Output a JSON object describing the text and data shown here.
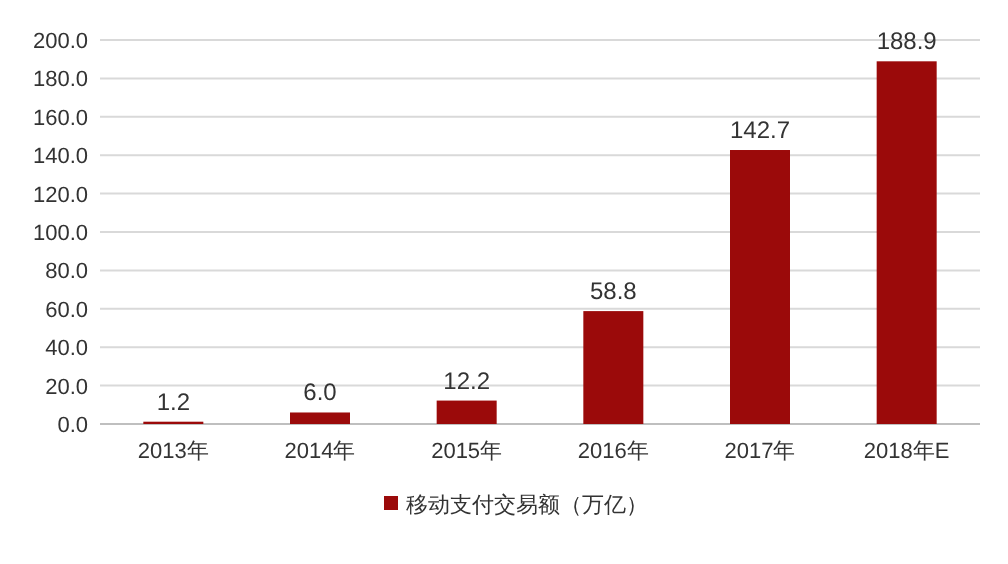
{
  "chart_data": {
    "type": "bar",
    "categories": [
      "2013年",
      "2014年",
      "2015年",
      "2016年",
      "2017年",
      "2018年E"
    ],
    "series": [
      {
        "name": "移动支付交易额（万亿）",
        "color": "#9b0a0a",
        "values": [
          1.2,
          6.0,
          12.2,
          58.8,
          142.7,
          188.9
        ],
        "value_labels": [
          "1.2",
          "6.0",
          "12.2",
          "58.8",
          "142.7",
          "188.9"
        ]
      }
    ],
    "ylim": [
      0,
      200
    ],
    "yticks": [
      {
        "value": 0,
        "label": "0.0"
      },
      {
        "value": 20,
        "label": "20.0"
      },
      {
        "value": 40,
        "label": "40.0"
      },
      {
        "value": 60,
        "label": "60.0"
      },
      {
        "value": 80,
        "label": "80.0"
      },
      {
        "value": 100,
        "label": "100.0"
      },
      {
        "value": 120,
        "label": "120.0"
      },
      {
        "value": 140,
        "label": "140.0"
      },
      {
        "value": 160,
        "label": "160.0"
      },
      {
        "value": 180,
        "label": "180.0"
      },
      {
        "value": 200,
        "label": "200.0"
      }
    ],
    "grid": "y",
    "legend": "bottom"
  }
}
